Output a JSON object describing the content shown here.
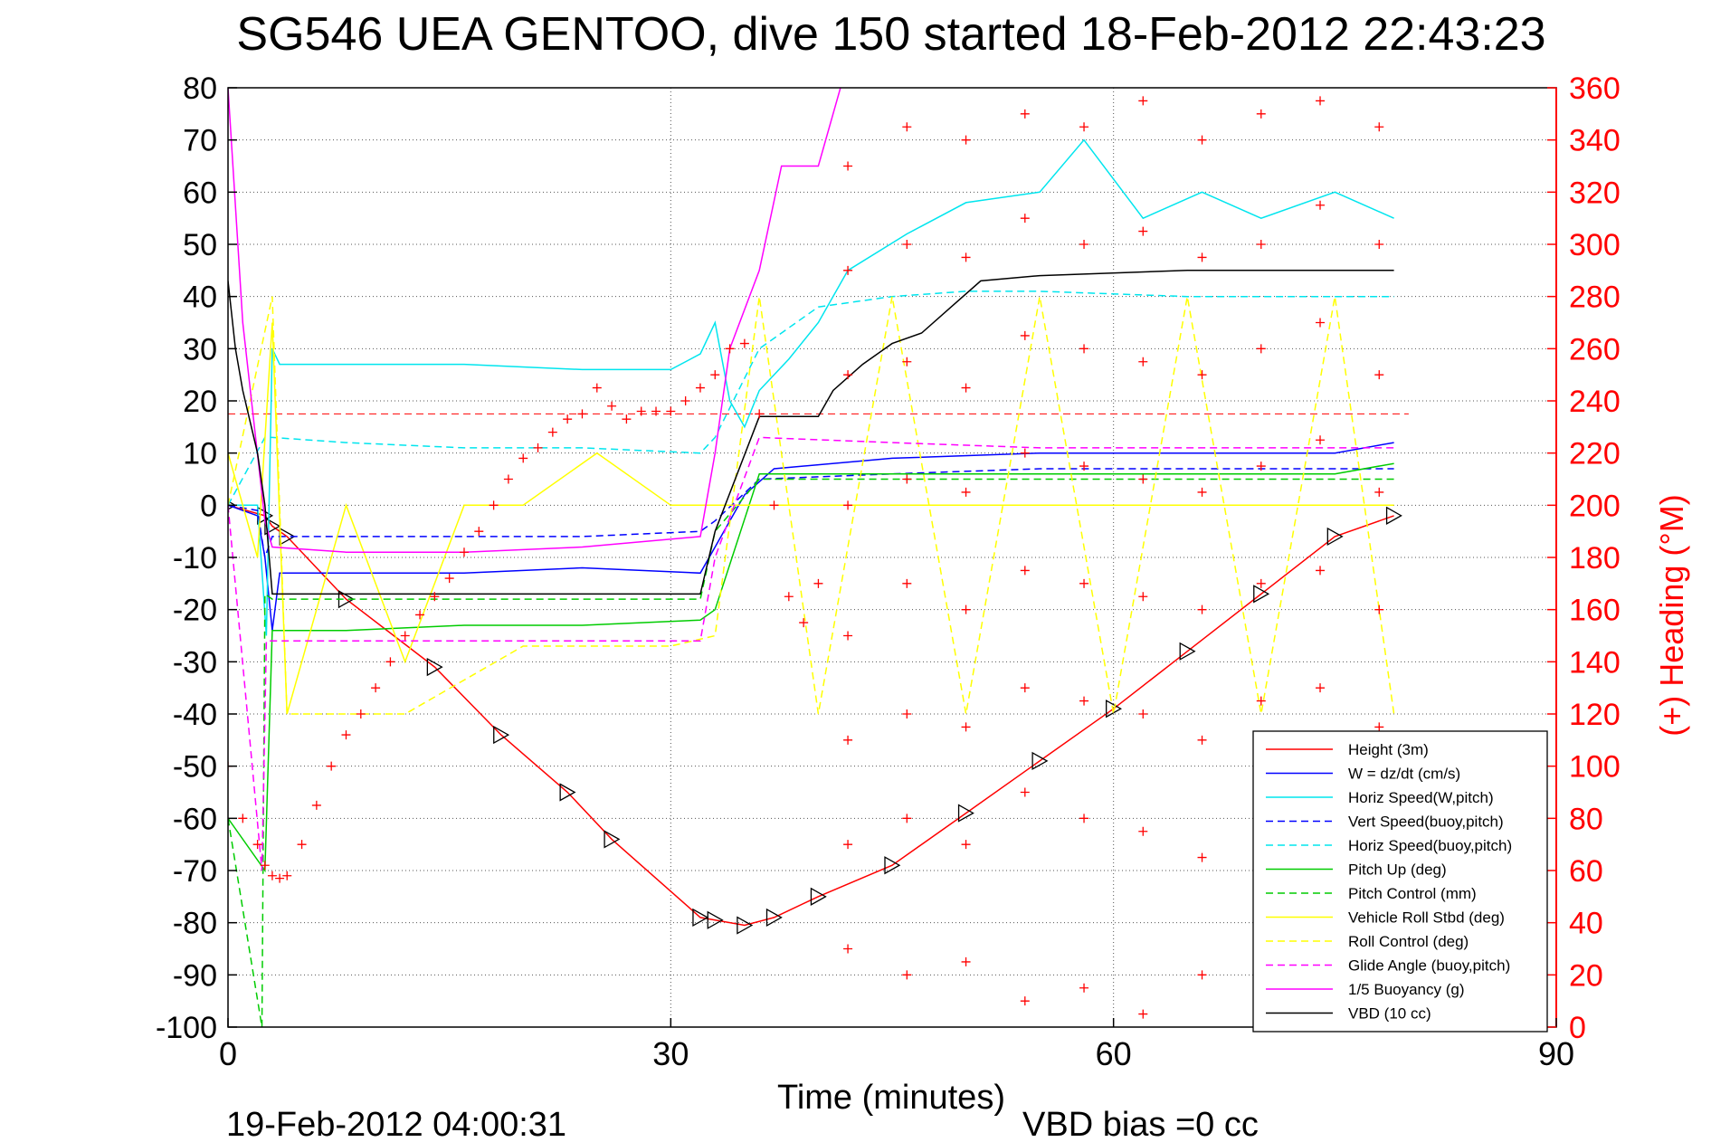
{
  "chart_data": {
    "type": "line",
    "title": "SG546 UEA GENTOO, dive 150 started 18-Feb-2012 22:43:23",
    "xlabel": "Time (minutes)",
    "ylabel": "",
    "y2label": "(+) Heading (°M)",
    "xlim": [
      0,
      90
    ],
    "ylim": [
      -100,
      80
    ],
    "y2lim": [
      0,
      360
    ],
    "x_ticks": [
      0,
      30,
      60,
      90
    ],
    "x_tick_labels": [
      "0",
      "30",
      "60",
      "90"
    ],
    "y_ticks": [
      80,
      70,
      60,
      50,
      40,
      30,
      20,
      10,
      0,
      -10,
      -20,
      -30,
      -40,
      -50,
      -60,
      -70,
      -80,
      -90,
      -100
    ],
    "y_tick_labels": [
      "80",
      "70",
      "60",
      "50",
      "40",
      "30",
      "20",
      "10",
      "0",
      "-10",
      "-20",
      "-30",
      "-40",
      "-50",
      "-60",
      "-70",
      "-80",
      "-90",
      "-100"
    ],
    "y2_ticks": [
      360,
      340,
      320,
      300,
      280,
      260,
      240,
      220,
      200,
      180,
      160,
      140,
      120,
      100,
      80,
      60,
      40,
      20,
      0
    ],
    "y2_tick_labels": [
      "360",
      "340",
      "320",
      "300",
      "280",
      "260",
      "240",
      "220",
      "200",
      "180",
      "160",
      "140",
      "120",
      "100",
      "80",
      "60",
      "40",
      "20",
      "0"
    ],
    "grid": true,
    "legend_position": "bottom-right",
    "footer_left": "19-Feb-2012 04:00:31",
    "footer_right": "VBD bias =0 cc",
    "series": [
      {
        "name": "Height (3m)",
        "color": "#ff0000",
        "style": "solid",
        "marker": "triangle",
        "x": [
          0,
          2.5,
          3,
          4,
          8,
          14,
          18.5,
          23,
          26,
          32,
          33,
          35,
          37,
          40,
          45,
          50,
          55,
          60,
          65,
          70,
          75,
          79
        ],
        "y": [
          0,
          -2,
          -4,
          -6,
          -18,
          -31,
          -44,
          -55,
          -64,
          -79,
          -79.5,
          -80.5,
          -79,
          -75,
          -69,
          -59,
          -49,
          -39,
          -28,
          -17,
          -6,
          -2
        ]
      },
      {
        "name": "W = dz/dt (cm/s)",
        "color": "#0000ff",
        "style": "solid",
        "x": [
          0,
          2,
          2.5,
          3,
          3.5,
          8,
          16,
          24,
          32,
          33,
          35,
          37,
          45,
          55,
          65,
          75,
          79
        ],
        "y": [
          0,
          -2,
          -10,
          -24,
          -13,
          -13,
          -13,
          -12,
          -13,
          -8,
          2,
          7,
          9,
          10,
          10,
          10,
          12
        ]
      },
      {
        "name": "Horiz Speed(W,pitch)",
        "color": "#00e5ee",
        "style": "solid",
        "x": [
          0,
          2,
          2.6,
          3,
          3.5,
          8,
          16,
          24,
          30,
          32,
          33,
          34,
          35,
          36,
          38,
          40,
          42,
          46,
          50,
          55,
          58,
          62,
          66,
          70,
          75,
          79
        ],
        "y": [
          0,
          0,
          -25,
          30,
          27,
          27,
          27,
          26,
          26,
          29,
          35,
          20,
          15,
          22,
          28,
          35,
          45,
          52,
          58,
          60,
          70,
          55,
          60,
          55,
          60,
          55
        ]
      },
      {
        "name": "Vert Speed(buoy,pitch)",
        "color": "#0000ff",
        "style": "dashed",
        "x": [
          0,
          2,
          2.5,
          3,
          8,
          16,
          24,
          32,
          33,
          36,
          45,
          55,
          65,
          75,
          79
        ],
        "y": [
          0,
          -1,
          -10,
          -6,
          -6,
          -6,
          -6,
          -5,
          -3,
          5,
          6,
          7,
          7,
          7,
          7
        ]
      },
      {
        "name": "Horiz Speed(buoy,pitch)",
        "color": "#00e5ee",
        "style": "dashed",
        "x": [
          0,
          2.5,
          3,
          8,
          16,
          24,
          32,
          33,
          36,
          40,
          45,
          50,
          55,
          65,
          75,
          79
        ],
        "y": [
          0,
          13,
          13,
          12,
          11,
          11,
          10,
          13,
          30,
          38,
          40,
          41,
          41,
          40,
          40,
          40
        ]
      },
      {
        "name": "Pitch Up (deg)",
        "color": "#00cc00",
        "style": "solid",
        "x": [
          0,
          2.5,
          3,
          8,
          16,
          24,
          32,
          33,
          36,
          45,
          55,
          65,
          75,
          79
        ],
        "y": [
          -60,
          -70,
          -24,
          -24,
          -23,
          -23,
          -22,
          -20,
          6,
          6,
          6,
          6,
          6,
          8
        ]
      },
      {
        "name": "Pitch Control (mm)",
        "color": "#00cc00",
        "style": "dashed",
        "x": [
          0,
          2.3,
          2.5,
          3,
          8,
          16,
          24,
          32,
          33,
          36,
          45,
          55,
          65,
          75,
          79
        ],
        "y": [
          -60,
          -100,
          -17,
          -18,
          -18,
          -18,
          -18,
          -18,
          -5,
          5,
          5,
          5,
          5,
          5,
          5
        ]
      },
      {
        "name": "Vehicle Roll Stbd (deg)",
        "color": "#ffff00",
        "style": "solid",
        "x": [
          0,
          2,
          3,
          4,
          8,
          12,
          16,
          20,
          25,
          30,
          32,
          35,
          40,
          45,
          50,
          55,
          60,
          65,
          70,
          75,
          79
        ],
        "y": [
          10,
          -10,
          35,
          -40,
          0,
          -30,
          0,
          0,
          10,
          0,
          0,
          0,
          0,
          0,
          0,
          0,
          0,
          0,
          0,
          0,
          0
        ]
      },
      {
        "name": "Roll Control (deg)",
        "color": "#ffff00",
        "style": "dashed",
        "x": [
          0,
          3,
          4,
          8,
          12,
          20,
          30,
          33,
          36,
          40,
          45,
          50,
          55,
          60,
          65,
          70,
          75,
          79
        ],
        "y": [
          0,
          40,
          -40,
          -40,
          -40,
          -27,
          -27,
          -25,
          40,
          -40,
          40,
          -40,
          40,
          -40,
          40,
          -40,
          40,
          -40
        ]
      },
      {
        "name": "Glide Angle (buoy,pitch)",
        "color": "#ff00ff",
        "style": "dashed",
        "x": [
          0,
          2.3,
          2.6,
          3,
          8,
          16,
          24,
          32,
          33,
          36,
          45,
          55,
          65,
          75,
          79
        ],
        "y": [
          0,
          -70,
          -26,
          -26,
          -26,
          -26,
          -26,
          -26,
          -10,
          13,
          12,
          11,
          11,
          11,
          11
        ]
      },
      {
        "name": "1/5 Buoyancy (g)",
        "color": "#ff00ff",
        "style": "solid",
        "x": [
          0,
          1,
          2.5,
          3,
          8,
          16,
          24,
          32,
          33,
          34,
          36,
          37.5,
          38,
          40,
          41.5
        ],
        "y": [
          80,
          35,
          -3,
          -8,
          -9,
          -9,
          -8,
          -6,
          10,
          30,
          45,
          65,
          65,
          65,
          80
        ]
      },
      {
        "name": "VBD (10 cc)",
        "color": "#000000",
        "style": "solid",
        "x": [
          0,
          0.5,
          1,
          2,
          2.5,
          3,
          8,
          16,
          24,
          32,
          33,
          36,
          37,
          40,
          41,
          43,
          45,
          47,
          49,
          51,
          55,
          65,
          75,
          79
        ],
        "y": [
          43,
          30,
          22,
          10,
          0,
          -17,
          -17,
          -17,
          -17,
          -17,
          -5,
          17,
          17,
          17,
          22,
          27,
          31,
          33,
          38,
          43,
          44,
          45,
          45,
          45
        ]
      }
    ],
    "heading_series": {
      "axis": "right",
      "color": "#ff0000",
      "marker": "plus",
      "x": [
        0,
        1,
        2,
        2.5,
        3,
        3.5,
        4,
        5,
        6,
        7,
        8,
        9,
        10,
        11,
        12,
        13,
        14,
        15,
        16,
        17,
        18,
        19,
        20,
        21,
        22,
        23,
        24,
        25,
        26,
        27,
        28,
        29,
        30,
        31,
        32,
        33,
        34,
        35,
        36,
        37,
        38,
        39,
        40
      ],
      "y": [
        100,
        80,
        70,
        62,
        58,
        57,
        58,
        70,
        85,
        100,
        112,
        120,
        130,
        140,
        150,
        158,
        165,
        172,
        182,
        190,
        200,
        210,
        218,
        222,
        228,
        233,
        235,
        245,
        238,
        233,
        236,
        236,
        236,
        240,
        245,
        250,
        260,
        262,
        235,
        200,
        165,
        155,
        170
      ]
    },
    "heading_scatter": {
      "x": [
        42,
        42,
        42,
        42,
        42,
        42,
        42,
        42,
        46,
        46,
        46,
        46,
        46,
        46,
        46,
        46,
        50,
        50,
        50,
        50,
        50,
        50,
        50,
        50,
        54,
        54,
        54,
        54,
        54,
        54,
        54,
        54,
        58,
        58,
        58,
        58,
        58,
        58,
        58,
        58,
        62,
        62,
        62,
        62,
        62,
        62,
        62,
        62,
        66,
        66,
        66,
        66,
        66,
        66,
        66,
        66,
        70,
        70,
        70,
        70,
        70,
        70,
        70,
        70,
        74,
        74,
        74,
        74,
        74,
        74,
        74,
        74,
        78,
        78,
        78,
        78,
        78,
        78,
        78,
        78
      ],
      "y": [
        330,
        290,
        250,
        200,
        150,
        110,
        70,
        30,
        345,
        300,
        255,
        210,
        170,
        120,
        80,
        20,
        340,
        295,
        245,
        205,
        160,
        115,
        70,
        25,
        350,
        310,
        265,
        220,
        175,
        130,
        90,
        10,
        345,
        300,
        260,
        215,
        170,
        125,
        80,
        15,
        355,
        305,
        255,
        210,
        165,
        120,
        75,
        5,
        340,
        295,
        250,
        205,
        160,
        110,
        65,
        20,
        350,
        300,
        260,
        215,
        170,
        125,
        85,
        30,
        355,
        315,
        270,
        225,
        175,
        130,
        90,
        40,
        345,
        300,
        250,
        205,
        160,
        115,
        70,
        25
      ]
    },
    "reference_line": {
      "name": "",
      "color": "#ff0000",
      "style": "dashed",
      "y": 17.5
    }
  }
}
